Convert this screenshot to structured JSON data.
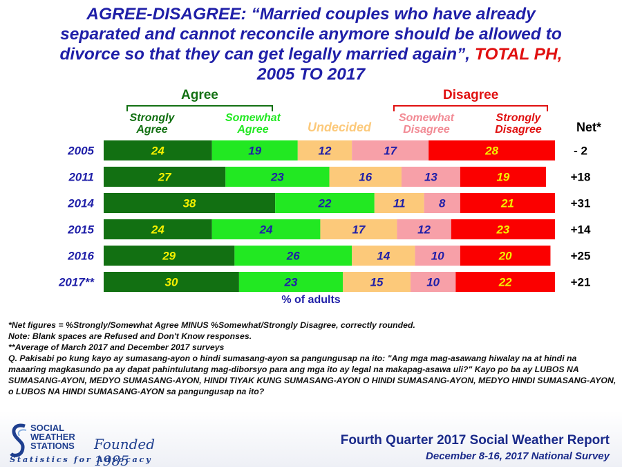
{
  "title": {
    "lines": [
      "AGREE-DISAGREE:  “Married couples who have already",
      "separated and cannot reconcile anymore should be allowed to",
      "divorce so that they can get legally married again”,"
    ],
    "highlight": "TOTAL PH,",
    "last_line": "2005 TO 2017"
  },
  "groups": {
    "agree": "Agree",
    "disagree": "Disagree"
  },
  "categories": {
    "strongly_agree": [
      "Strongly",
      "Agree"
    ],
    "somewhat_agree": [
      "Somewhat",
      "Agree"
    ],
    "undecided": "Undecided",
    "somewhat_disagree": [
      "Somewhat",
      "Disagree"
    ],
    "strongly_disagree": [
      "Strongly",
      "Disagree"
    ]
  },
  "net_header": "Net*",
  "xlabel": "% of adults",
  "colors": {
    "strongly_agree": "#127012",
    "somewhat_agree": "#22e822",
    "undecided": "#fcc97a",
    "somewhat_disagree": "#f7a0a8",
    "strongly_disagree": "#fb0000",
    "agree_group": "#127012",
    "disagree_group": "#e01010",
    "label_yellow": "#f5f000",
    "label_blue": "#1f1fa8",
    "label_pink": "#f28a94"
  },
  "chart_data": {
    "type": "bar",
    "orientation": "horizontal",
    "stacked": true,
    "categories": [
      "2005",
      "2011",
      "2014",
      "2015",
      "2016",
      "2017**"
    ],
    "series": [
      {
        "name": "Strongly Agree",
        "values": [
          24,
          27,
          38,
          24,
          29,
          30
        ]
      },
      {
        "name": "Somewhat Agree",
        "values": [
          19,
          23,
          22,
          24,
          26,
          23
        ]
      },
      {
        "name": "Undecided",
        "values": [
          12,
          16,
          11,
          17,
          14,
          15
        ]
      },
      {
        "name": "Somewhat Disagree",
        "values": [
          17,
          13,
          8,
          12,
          10,
          10
        ]
      },
      {
        "name": "Strongly Disagree",
        "values": [
          28,
          19,
          21,
          23,
          20,
          22
        ]
      }
    ],
    "net": [
      "-  2",
      "+18",
      "+31",
      "+14",
      "+25",
      "+21"
    ],
    "xlabel": "% of adults"
  },
  "notes": [
    "*Net figures = %Strongly/Somewhat Agree MINUS %Somewhat/Strongly Disagree, correctly rounded.",
    "Note: Blank spaces are Refused and Don't Know responses.",
    "**Average of March 2017 and December 2017 surveys",
    "Q. Pakisabi po kung kayo ay sumasang-ayon o hindi sumasang-ayon sa pangungusap na ito: \"Ang mga mag-asawang hiwalay na at hindi na maaaring magkasundo pa ay dapat pahintulutang mag-diborsyo para ang mga ito ay legal na makapag-asawa uli?\" Kayo po ba ay LUBOS NA SUMASANG-AYON, MEDYO SUMASANG-AYON, HINDI TIYAK KUNG SUMASANG-AYON O HINDI SUMASANG-AYON, MEDYO HINDI SUMASANG-AYON, o LUBOS NA HINDI SUMASANG-AYON sa pangungusap na ito?"
  ],
  "logo": {
    "name_lines": [
      "SOCIAL",
      "WEATHER",
      "STATIONS"
    ],
    "founded": "Founded 1985",
    "tagline": "Statistics for Advocacy"
  },
  "footer": {
    "report": "Fourth Quarter 2017 Social Weather Report",
    "survey": "December 8-16, 2017 National Survey"
  }
}
